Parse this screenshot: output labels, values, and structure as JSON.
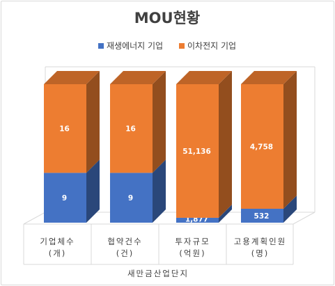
{
  "chart_data": {
    "type": "bar",
    "stacked": true,
    "three_d": true,
    "title": "MOU현황",
    "categories": [
      [
        "기업체수",
        "(개)"
      ],
      [
        "협약건수",
        "(건)"
      ],
      [
        "투자규모",
        "(억원)"
      ],
      [
        "고용계획인원",
        "(명)"
      ]
    ],
    "group_label": "새만금산업단지",
    "series": [
      {
        "name": "재생에너지 기업",
        "color": "#4472c4",
        "values": [
          9,
          9,
          1877,
          532
        ],
        "labels": [
          "9",
          "9",
          "1,877",
          "532"
        ]
      },
      {
        "name": "이차전지 기업",
        "color": "#ed7d31",
        "values": [
          16,
          16,
          51136,
          4758
        ],
        "labels": [
          "16",
          "16",
          "51,136",
          "4,758"
        ]
      }
    ],
    "normalized_100_percent": true,
    "legend_position": "top",
    "grid": false
  }
}
